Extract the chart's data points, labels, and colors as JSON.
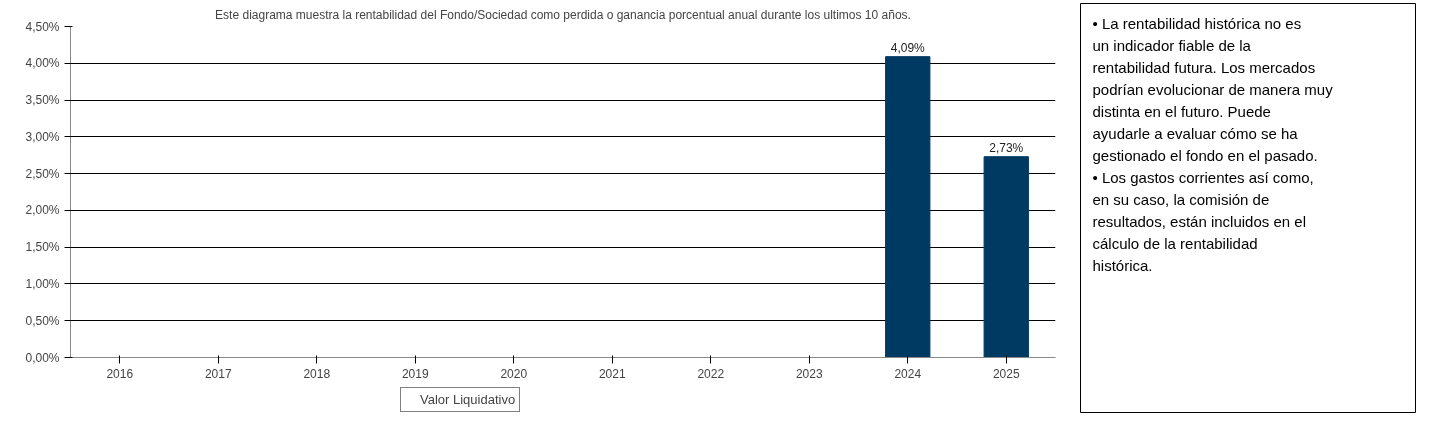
{
  "chart_data": {
    "type": "bar",
    "title": "Este diagrama muestra la rentabilidad del Fondo/Sociedad como perdida o ganancia porcentual anual durante los ultimos 10 años.",
    "categories": [
      "2016",
      "2017",
      "2018",
      "2019",
      "2020",
      "2021",
      "2022",
      "2023",
      "2024",
      "2025"
    ],
    "series": [
      {
        "name": "Valor Liquidativo",
        "color": "#003a63",
        "values": [
          null,
          null,
          null,
          null,
          null,
          null,
          null,
          null,
          4.09,
          2.73
        ],
        "value_labels": [
          null,
          null,
          null,
          null,
          null,
          null,
          null,
          null,
          "4,09%",
          "2,73%"
        ]
      }
    ],
    "ylim": [
      0,
      4.5
    ],
    "yticks": [
      {
        "value": 0,
        "label": "0,00%"
      },
      {
        "value": 0.5,
        "label": "0,50%"
      },
      {
        "value": 1,
        "label": "1,00%"
      },
      {
        "value": 1.5,
        "label": "1,50%"
      },
      {
        "value": 2,
        "label": "2,00%"
      },
      {
        "value": 2.5,
        "label": "2,50%"
      },
      {
        "value": 3,
        "label": "3,00%"
      },
      {
        "value": 3.5,
        "label": "3,50%"
      },
      {
        "value": 4,
        "label": "4,00%"
      },
      {
        "value": 4.5,
        "label": "4,50%"
      }
    ],
    "grid": "y",
    "legend": "bottom",
    "annotations": [
      "• La rentabilidad histórica no es un indicador fiable de la rentabilidad futura. Los mercados podrían evolucionar de manera muy distinta en el futuro. Puede ayudarle a evaluar cómo se ha gestionado el fondo en el pasado.",
      "• Los gastos corrientes así como, en su caso, la comisión de resultados, están incluidos en el cálculo de la rentabilidad histórica."
    ]
  }
}
